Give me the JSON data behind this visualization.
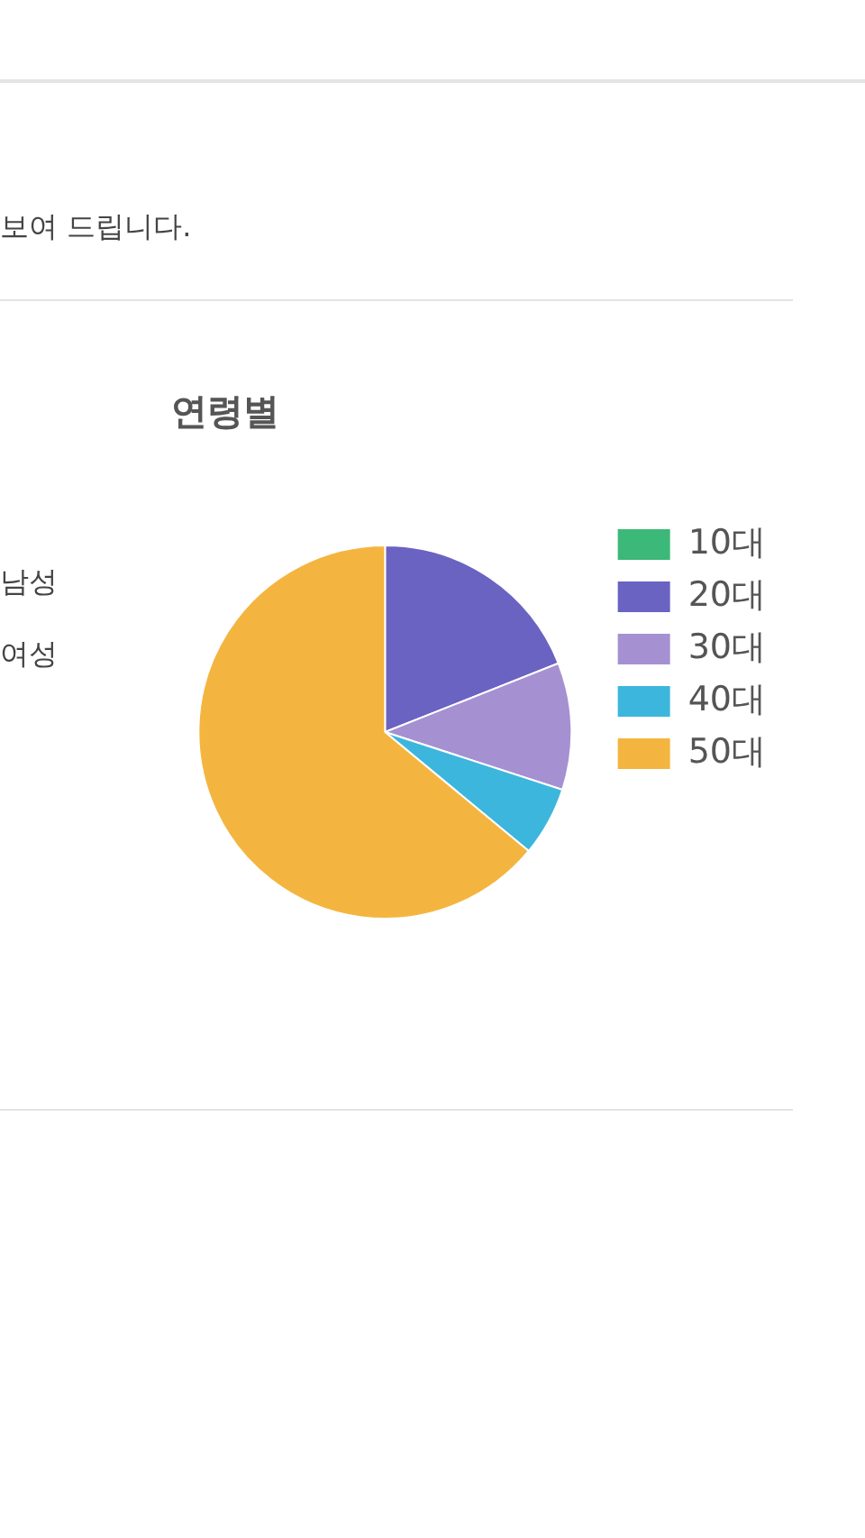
{
  "chart_data": {
    "type": "pie",
    "title": "연령별",
    "categories": [
      "10대",
      "20대",
      "30대",
      "40대",
      "50대"
    ],
    "values": [
      0,
      19,
      11,
      6,
      64
    ],
    "colors": [
      "#3cb878",
      "#6a63c2",
      "#a590d2",
      "#3db6dd",
      "#f4b540"
    ],
    "legend": "right",
    "annotations": [
      "보여 드립니다.",
      "남성",
      "여성"
    ]
  }
}
